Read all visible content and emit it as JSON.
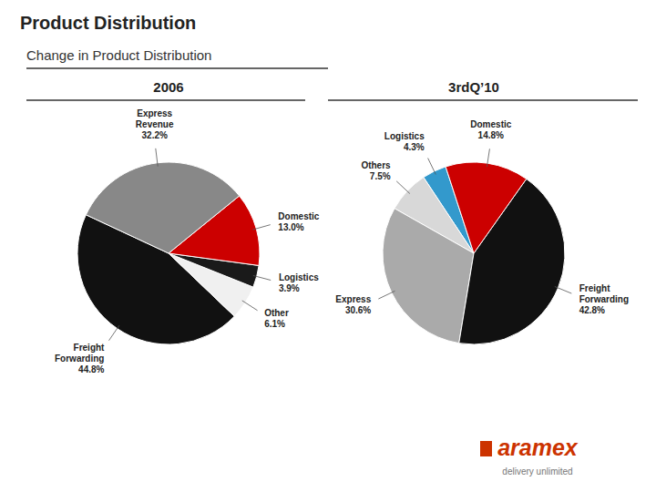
{
  "title": "Product Distribution",
  "subtitle": "Change in Product Distribution",
  "annotations": [
    {
      "text": "aramex",
      "color": "#cc3300"
    },
    {
      "text": "delivery unlimited",
      "color": "#777777"
    }
  ],
  "chart_data": [
    {
      "type": "pie",
      "title": "2006",
      "categories": [
        "Freight Forwarding",
        "Other",
        "Logistics",
        "Domestic",
        "Express Revenue"
      ],
      "values": [
        44.8,
        6.1,
        3.9,
        13.0,
        32.2
      ],
      "value_labels": [
        "44.8%",
        "6.1%",
        "3.9%",
        "13.0%",
        "32.2%"
      ],
      "colors": [
        "#111111",
        "#f0f0f0",
        "#1a1a1a",
        "#cc0000",
        "#888888"
      ],
      "data_labels": true
    },
    {
      "type": "pie",
      "title": "3rdQ’10",
      "categories": [
        "Logistics",
        "Others",
        "Express",
        "Freight Forwarding",
        "Domestic"
      ],
      "values": [
        4.3,
        7.5,
        30.6,
        42.8,
        14.8
      ],
      "value_labels": [
        "4.3%",
        "7.5%",
        "30.6%",
        "42.8%",
        "14.8%"
      ],
      "colors": [
        "#3399cc",
        "#d8d8d8",
        "#aaaaaa",
        "#111111",
        "#cc0000"
      ],
      "data_labels": true
    }
  ]
}
